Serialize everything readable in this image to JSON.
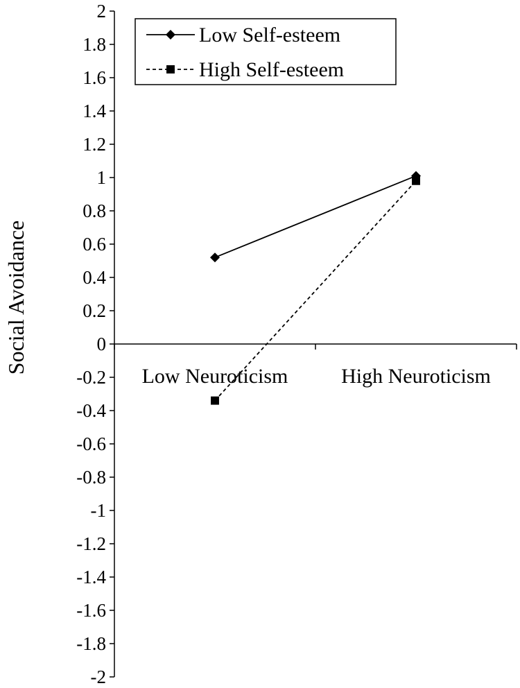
{
  "chart_data": {
    "type": "line",
    "categories": [
      "Low Neuroticism",
      "High Neuroticism"
    ],
    "series": [
      {
        "name": "Low Self-esteem",
        "values": [
          0.52,
          1.01
        ],
        "marker": "diamond",
        "dash": "solid"
      },
      {
        "name": "High Self-esteem",
        "values": [
          -0.34,
          0.98
        ],
        "marker": "square",
        "dash": "dashed"
      }
    ],
    "title": "",
    "xlabel": "",
    "ylabel": "Social Avoidance",
    "ylim": [
      -2,
      2
    ],
    "yticks": [
      "2",
      "1.8",
      "1.6",
      "1.4",
      "1.2",
      "1",
      "0.8",
      "0.6",
      "0.4",
      "0.2",
      "0",
      "-0.2",
      "-0.4",
      "-0.6",
      "-0.8",
      "-1",
      "-1.2",
      "-1.4",
      "-1.6",
      "-1.8",
      "-2"
    ],
    "grid": false,
    "legend_position": "top-left",
    "line_color": "#000000"
  }
}
